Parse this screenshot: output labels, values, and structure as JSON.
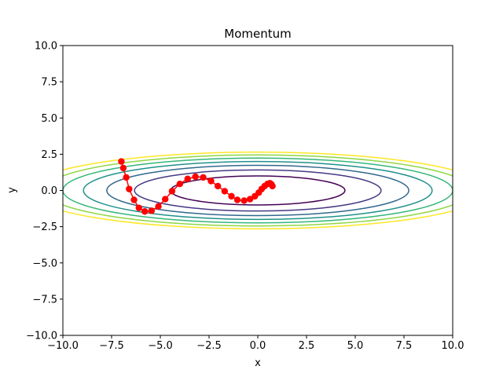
{
  "chart_data": {
    "type": "contour",
    "title": "Momentum",
    "xlabel": "x",
    "ylabel": "y",
    "xlim": [
      -10,
      10
    ],
    "ylim": [
      -10,
      10
    ],
    "x_ticks": [
      "−10.0",
      "−7.5",
      "−5.0",
      "−2.5",
      "0.0",
      "2.5",
      "5.0",
      "7.5",
      "10.0"
    ],
    "x_tick_values": [
      -10,
      -7.5,
      -5,
      -2.5,
      0,
      2.5,
      5,
      7.5,
      10
    ],
    "y_ticks": [
      "−10.0",
      "−7.5",
      "−5.0",
      "−2.5",
      "0.0",
      "2.5",
      "5.0",
      "7.5",
      "10.0"
    ],
    "y_tick_values": [
      -10,
      -7.5,
      -5,
      -2.5,
      0,
      2.5,
      5,
      7.5,
      10
    ],
    "grid": false,
    "contours": {
      "function": "x^2/20 + y^2",
      "levels": [
        1,
        2,
        3,
        4,
        5,
        6,
        7
      ],
      "colors": [
        "#440154",
        "#443983",
        "#31688e",
        "#21918c",
        "#35b779",
        "#90d743",
        "#fde725"
      ]
    },
    "series": [
      {
        "color": "#ff0000",
        "marker": "circle",
        "line": true,
        "points": [
          [
            -7.0,
            2.0
          ],
          [
            -6.9,
            1.55
          ],
          [
            -6.75,
            0.9
          ],
          [
            -6.6,
            0.1
          ],
          [
            -6.35,
            -0.65
          ],
          [
            -6.1,
            -1.2
          ],
          [
            -5.8,
            -1.45
          ],
          [
            -5.45,
            -1.4
          ],
          [
            -5.1,
            -1.1
          ],
          [
            -4.75,
            -0.6
          ],
          [
            -4.4,
            -0.05
          ],
          [
            -4.0,
            0.45
          ],
          [
            -3.6,
            0.8
          ],
          [
            -3.2,
            0.95
          ],
          [
            -2.8,
            0.9
          ],
          [
            -2.4,
            0.65
          ],
          [
            -2.05,
            0.3
          ],
          [
            -1.7,
            -0.05
          ],
          [
            -1.35,
            -0.4
          ],
          [
            -1.05,
            -0.65
          ],
          [
            -0.7,
            -0.7
          ],
          [
            -0.4,
            -0.6
          ],
          [
            -0.15,
            -0.4
          ],
          [
            0.05,
            -0.15
          ],
          [
            0.2,
            0.1
          ],
          [
            0.35,
            0.3
          ],
          [
            0.5,
            0.45
          ],
          [
            0.62,
            0.5
          ],
          [
            0.7,
            0.42
          ],
          [
            0.75,
            0.3
          ]
        ]
      }
    ]
  }
}
